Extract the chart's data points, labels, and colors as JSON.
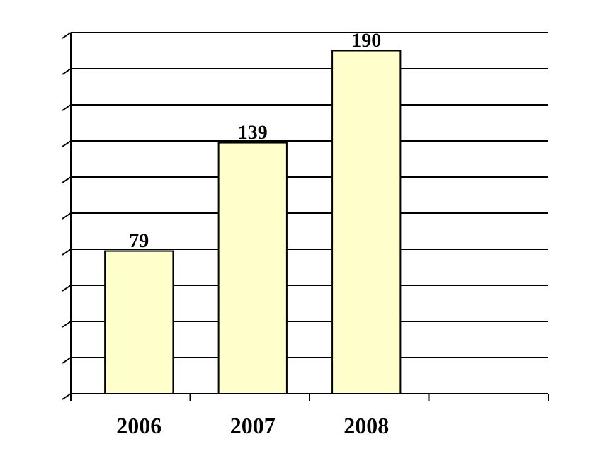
{
  "chart_data": {
    "type": "bar",
    "categories": [
      "2006",
      "2007",
      "2008",
      null
    ],
    "series": [
      {
        "color": "#ffffcc",
        "values": [
          79,
          139,
          190,
          null
        ]
      }
    ],
    "ylim": [
      0,
      200
    ],
    "yticks": [
      {
        "value": 0,
        "label": null
      },
      {
        "value": 20,
        "label": null
      },
      {
        "value": 40,
        "label": null
      },
      {
        "value": 60,
        "label": null
      },
      {
        "value": 80,
        "label": null
      },
      {
        "value": 100,
        "label": null
      },
      {
        "value": 120,
        "label": null
      },
      {
        "value": 140,
        "label": null
      },
      {
        "value": 160,
        "label": null
      },
      {
        "value": 180,
        "label": null
      },
      {
        "value": 200,
        "label": null
      }
    ],
    "grid": "y",
    "tick_labels": "x",
    "data_labels": true
  }
}
